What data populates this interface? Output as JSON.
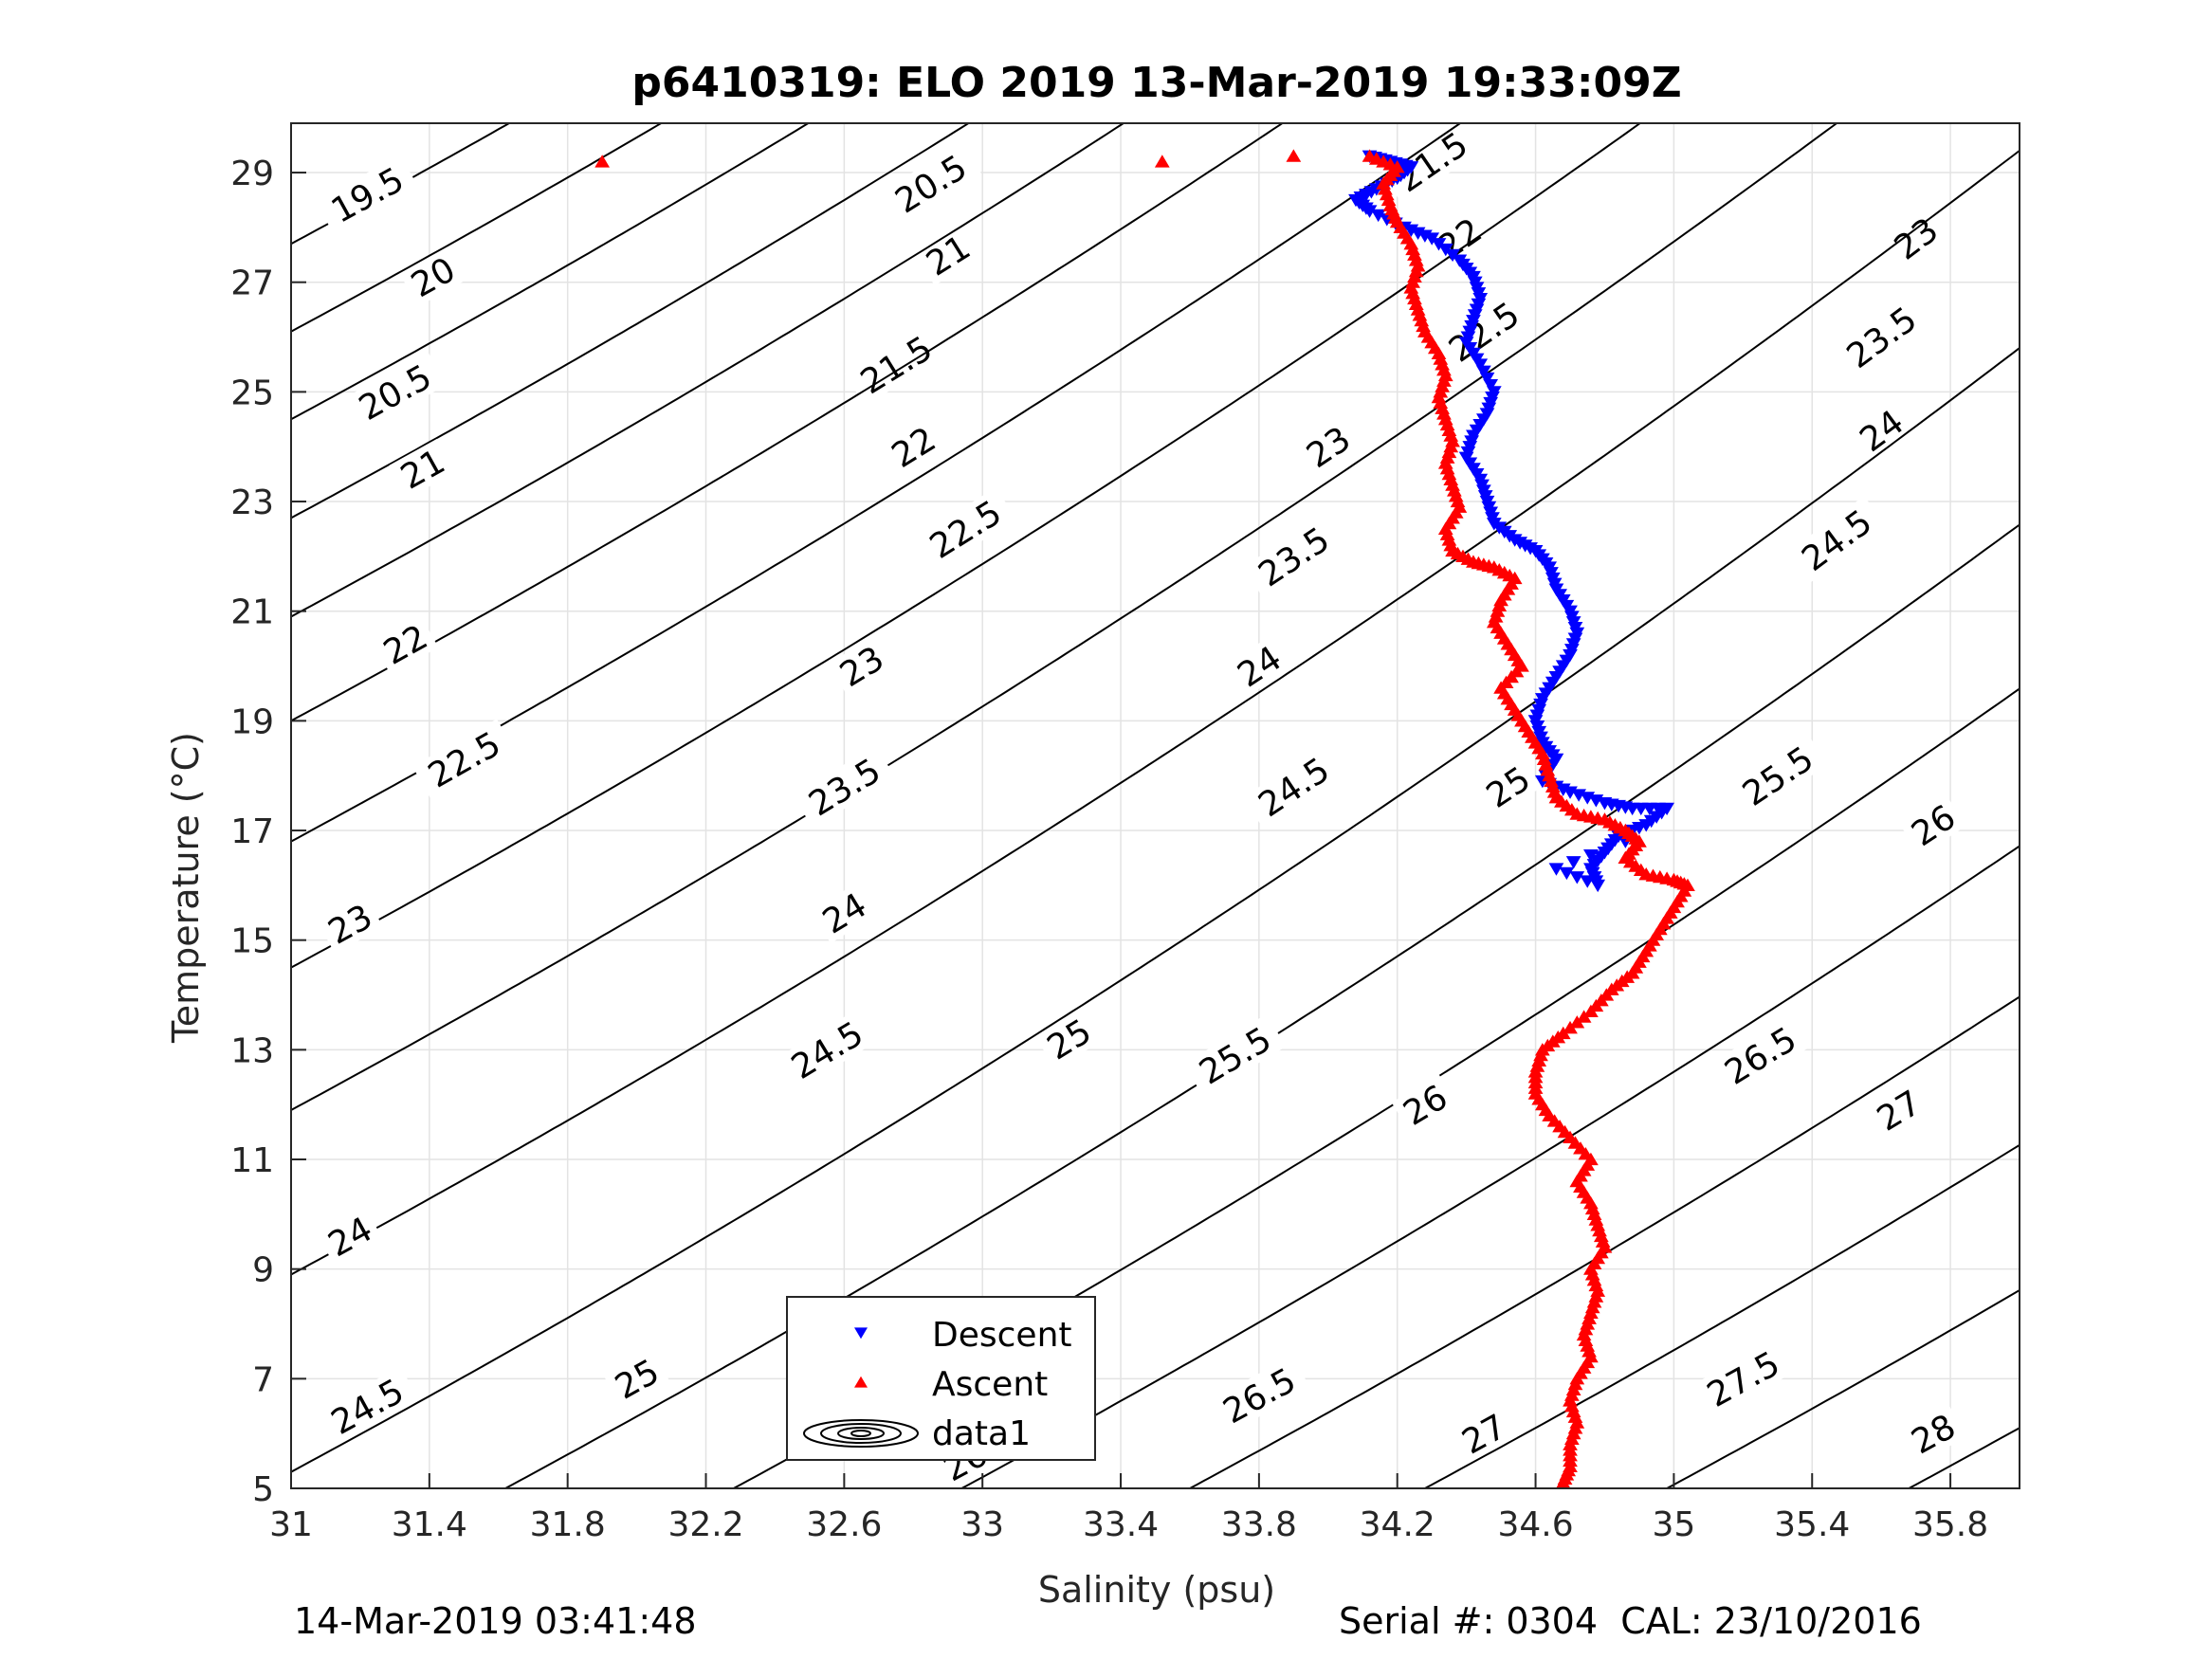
{
  "footer": {
    "timestamp": "14-Mar-2019 03:41:48",
    "serial": "Serial #: 0304  CAL: 23/10/2016"
  },
  "chart_data": {
    "type": "scatter",
    "title": "p6410319: ELO 2019 13-Mar-2019 19:33:09Z",
    "xlabel": "Salinity (psu)",
    "ylabel": "Temperature (°C)",
    "xlim": [
      31,
      36
    ],
    "ylim": [
      5,
      29.9
    ],
    "xticks": [
      31,
      31.4,
      31.8,
      32.2,
      32.6,
      33,
      33.4,
      33.8,
      34.2,
      34.6,
      35,
      35.4,
      35.8
    ],
    "yticks": [
      5,
      7,
      9,
      11,
      13,
      15,
      17,
      19,
      21,
      23,
      25,
      27,
      29
    ],
    "grid": true,
    "legend": {
      "placement": "bottom-center",
      "entries": [
        {
          "name": "Descent",
          "color": "#0000ff",
          "marker": "triangle-down"
        },
        {
          "name": "Ascent",
          "color": "#ff0000",
          "marker": "triangle-up"
        },
        {
          "name": "data1",
          "color": "#000000",
          "marker": "contour"
        }
      ]
    },
    "contours": [
      {
        "level": "19.5",
        "s0": 31.0,
        "t0": 27.7,
        "labels": [
          [
            31.22,
            28.6
          ]
        ]
      },
      {
        "level": "20",
        "s0": 31.0,
        "t0": 26.1,
        "labels": [
          [
            31.41,
            27.1
          ]
        ]
      },
      {
        "level": "20.5",
        "s0": 31.0,
        "t0": 24.5,
        "labels": [
          [
            31.3,
            25.0
          ],
          [
            32.85,
            28.8
          ]
        ]
      },
      {
        "level": "21",
        "s0": 31.0,
        "t0": 22.7,
        "labels": [
          [
            31.38,
            23.6
          ],
          [
            32.9,
            27.5
          ]
        ]
      },
      {
        "level": "21.5",
        "s0": 31.0,
        "t0": 20.9,
        "labels": [
          [
            32.75,
            25.5
          ],
          [
            34.3,
            29.2
          ]
        ]
      },
      {
        "level": "22",
        "s0": 31.0,
        "t0": 19.0,
        "labels": [
          [
            31.33,
            20.4
          ],
          [
            32.8,
            24.0
          ],
          [
            34.38,
            27.8
          ]
        ]
      },
      {
        "level": "22.5",
        "s0": 31.0,
        "t0": 16.8,
        "labels": [
          [
            31.5,
            18.3
          ],
          [
            32.95,
            22.5
          ],
          [
            34.45,
            26.1
          ]
        ]
      },
      {
        "level": "23",
        "s0": 31.0,
        "t0": 14.5,
        "labels": [
          [
            31.17,
            15.3
          ],
          [
            32.65,
            20.0
          ],
          [
            34.0,
            24.0
          ],
          [
            35.7,
            27.8
          ]
        ]
      },
      {
        "level": "23.5",
        "s0": 31.0,
        "t0": 11.9,
        "labels": [
          [
            32.6,
            17.8
          ],
          [
            33.9,
            22.0
          ],
          [
            35.6,
            26.0
          ]
        ]
      },
      {
        "level": "24",
        "s0": 31.0,
        "t0": 8.9,
        "labels": [
          [
            31.17,
            9.6
          ],
          [
            32.6,
            15.5
          ],
          [
            33.8,
            20.0
          ],
          [
            35.6,
            24.3
          ]
        ]
      },
      {
        "level": "24.5",
        "s0": 31.0,
        "t0": 5.3,
        "labels": [
          [
            31.22,
            6.5
          ],
          [
            32.55,
            13.0
          ],
          [
            33.9,
            17.8
          ],
          [
            35.47,
            22.3
          ]
        ]
      },
      {
        "level": "25",
        "s0": 31.62,
        "t0": 5.0,
        "labels": [
          [
            32.0,
            7.0
          ],
          [
            33.25,
            13.2
          ],
          [
            34.52,
            17.8
          ]
        ]
      },
      {
        "level": "25.5",
        "s0": 32.28,
        "t0": 5.0,
        "labels": [
          [
            32.58,
            6.5
          ],
          [
            33.73,
            12.9
          ],
          [
            35.3,
            18.0
          ]
        ]
      },
      {
        "level": "26",
        "s0": 32.94,
        "t0": 5.0,
        "labels": [
          [
            32.95,
            5.5
          ],
          [
            34.28,
            12.0
          ],
          [
            35.75,
            17.1
          ]
        ]
      },
      {
        "level": "26.5",
        "s0": 33.6,
        "t0": 5.0,
        "labels": [
          [
            33.8,
            6.7
          ],
          [
            35.25,
            12.9
          ]
        ]
      },
      {
        "level": "27",
        "s0": 34.28,
        "t0": 5.0,
        "labels": [
          [
            34.45,
            6.0
          ],
          [
            35.65,
            11.9
          ]
        ]
      },
      {
        "level": "27.5",
        "s0": 34.98,
        "t0": 5.0,
        "labels": [
          [
            35.2,
            7.0
          ]
        ]
      },
      {
        "level": "28",
        "s0": 35.68,
        "t0": 5.0,
        "labels": [
          [
            35.75,
            6.0
          ]
        ]
      }
    ],
    "series": [
      {
        "name": "Descent",
        "color": "#0000ff",
        "marker": "triangle-down",
        "points": [
          [
            34.12,
            29.3
          ],
          [
            34.18,
            29.2
          ],
          [
            34.24,
            29.1
          ],
          [
            34.2,
            28.9
          ],
          [
            34.14,
            28.7
          ],
          [
            34.08,
            28.5
          ],
          [
            34.12,
            28.3
          ],
          [
            34.22,
            28.0
          ],
          [
            34.3,
            27.8
          ],
          [
            34.38,
            27.4
          ],
          [
            34.42,
            27.1
          ],
          [
            34.44,
            26.7
          ],
          [
            34.42,
            26.3
          ],
          [
            34.4,
            25.9
          ],
          [
            34.44,
            25.5
          ],
          [
            34.48,
            25.0
          ],
          [
            34.46,
            24.6
          ],
          [
            34.42,
            24.2
          ],
          [
            34.4,
            23.8
          ],
          [
            34.44,
            23.4
          ],
          [
            34.46,
            23.0
          ],
          [
            34.48,
            22.6
          ],
          [
            34.54,
            22.3
          ],
          [
            34.6,
            22.1
          ],
          [
            34.64,
            21.8
          ],
          [
            34.66,
            21.4
          ],
          [
            34.7,
            21.0
          ],
          [
            34.72,
            20.6
          ],
          [
            34.7,
            20.2
          ],
          [
            34.66,
            19.8
          ],
          [
            34.62,
            19.4
          ],
          [
            34.6,
            19.0
          ],
          [
            34.62,
            18.6
          ],
          [
            34.66,
            18.3
          ],
          [
            34.62,
            17.9
          ],
          [
            34.7,
            17.7
          ],
          [
            34.8,
            17.5
          ],
          [
            34.88,
            17.4
          ],
          [
            34.98,
            17.4
          ],
          [
            34.92,
            17.1
          ],
          [
            34.84,
            16.9
          ],
          [
            34.8,
            16.6
          ],
          [
            34.76,
            16.3
          ],
          [
            34.78,
            16.0
          ],
          [
            34.66,
            16.3
          ],
          [
            34.86,
            16.8
          ]
        ]
      },
      {
        "name": "Ascent",
        "color": "#ff0000",
        "marker": "triangle-up",
        "points": [
          [
            31.9,
            29.2
          ],
          [
            33.52,
            29.2
          ],
          [
            33.9,
            29.3
          ],
          [
            34.12,
            29.3
          ],
          [
            34.2,
            29.1
          ],
          [
            34.16,
            28.8
          ],
          [
            34.18,
            28.4
          ],
          [
            34.2,
            28.1
          ],
          [
            34.24,
            27.7
          ],
          [
            34.26,
            27.3
          ],
          [
            34.24,
            26.9
          ],
          [
            34.26,
            26.5
          ],
          [
            34.28,
            26.1
          ],
          [
            34.32,
            25.7
          ],
          [
            34.34,
            25.3
          ],
          [
            34.32,
            24.9
          ],
          [
            34.34,
            24.5
          ],
          [
            34.36,
            24.1
          ],
          [
            34.34,
            23.7
          ],
          [
            34.36,
            23.3
          ],
          [
            34.38,
            22.9
          ],
          [
            34.34,
            22.5
          ],
          [
            34.36,
            22.1
          ],
          [
            34.42,
            21.9
          ],
          [
            34.48,
            21.8
          ],
          [
            34.54,
            21.6
          ],
          [
            34.5,
            21.2
          ],
          [
            34.48,
            20.8
          ],
          [
            34.52,
            20.4
          ],
          [
            34.56,
            20.0
          ],
          [
            34.5,
            19.6
          ],
          [
            34.54,
            19.2
          ],
          [
            34.58,
            18.8
          ],
          [
            34.62,
            18.4
          ],
          [
            34.64,
            18.0
          ],
          [
            34.66,
            17.6
          ],
          [
            34.72,
            17.3
          ],
          [
            34.8,
            17.2
          ],
          [
            34.86,
            17.0
          ],
          [
            34.9,
            16.8
          ],
          [
            34.86,
            16.5
          ],
          [
            34.92,
            16.2
          ],
          [
            35.0,
            16.1
          ],
          [
            35.04,
            16.0
          ],
          [
            35.0,
            15.6
          ],
          [
            34.96,
            15.2
          ],
          [
            34.92,
            14.8
          ],
          [
            34.88,
            14.4
          ],
          [
            34.82,
            14.1
          ],
          [
            34.76,
            13.7
          ],
          [
            34.68,
            13.3
          ],
          [
            34.62,
            13.0
          ],
          [
            34.6,
            12.6
          ],
          [
            34.6,
            12.2
          ],
          [
            34.64,
            11.8
          ],
          [
            34.7,
            11.4
          ],
          [
            34.76,
            11.0
          ],
          [
            34.72,
            10.6
          ],
          [
            34.76,
            10.2
          ],
          [
            34.78,
            9.8
          ],
          [
            34.8,
            9.4
          ],
          [
            34.76,
            9.0
          ],
          [
            34.78,
            8.6
          ],
          [
            34.76,
            8.2
          ],
          [
            34.74,
            7.8
          ],
          [
            34.76,
            7.4
          ],
          [
            34.72,
            7.0
          ],
          [
            34.7,
            6.6
          ],
          [
            34.72,
            6.2
          ],
          [
            34.7,
            5.8
          ],
          [
            34.7,
            5.4
          ],
          [
            34.68,
            5.1
          ]
        ]
      }
    ]
  }
}
